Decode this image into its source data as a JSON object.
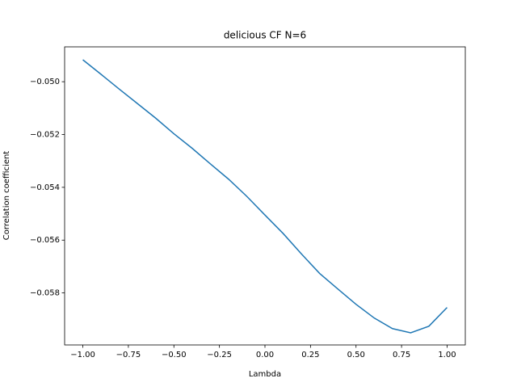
{
  "chart_data": {
    "type": "line",
    "title": "delicious CF N=6",
    "x_label": "Lambda",
    "y_label": "Correlation coefficient",
    "x": [
      -1.0,
      -0.9,
      -0.8,
      -0.7,
      -0.6,
      -0.5,
      -0.4,
      -0.3,
      -0.2,
      -0.1,
      0.0,
      0.1,
      0.2,
      0.3,
      0.4,
      0.5,
      0.6,
      0.7,
      0.8,
      0.9,
      1.0
    ],
    "series": [
      {
        "color": "#1f77b4",
        "values": [
          -0.04917,
          -0.04972,
          -0.05028,
          -0.05083,
          -0.05138,
          -0.05197,
          -0.05252,
          -0.05311,
          -0.05369,
          -0.05434,
          -0.05505,
          -0.05575,
          -0.05652,
          -0.05726,
          -0.05785,
          -0.05843,
          -0.05895,
          -0.05935,
          -0.05951,
          -0.05926,
          -0.05855
        ]
      }
    ],
    "xlim": [
      -1.1,
      1.1
    ],
    "ylim": [
      -0.05997,
      -0.04868
    ],
    "xticks": [
      {
        "value": -1.0,
        "label": "−1.00"
      },
      {
        "value": -0.75,
        "label": "−0.75"
      },
      {
        "value": -0.5,
        "label": "−0.50"
      },
      {
        "value": -0.25,
        "label": "−0.25"
      },
      {
        "value": 0.0,
        "label": "0.00"
      },
      {
        "value": 0.25,
        "label": "0.25"
      },
      {
        "value": 0.5,
        "label": "0.50"
      },
      {
        "value": 0.75,
        "label": "0.75"
      },
      {
        "value": 1.0,
        "label": "1.00"
      }
    ],
    "yticks": [
      {
        "value": -0.058,
        "label": "−0.058"
      },
      {
        "value": -0.056,
        "label": "−0.056"
      },
      {
        "value": -0.054,
        "label": "−0.054"
      },
      {
        "value": -0.052,
        "label": "−0.052"
      },
      {
        "value": -0.05,
        "label": "−0.050"
      }
    ]
  }
}
